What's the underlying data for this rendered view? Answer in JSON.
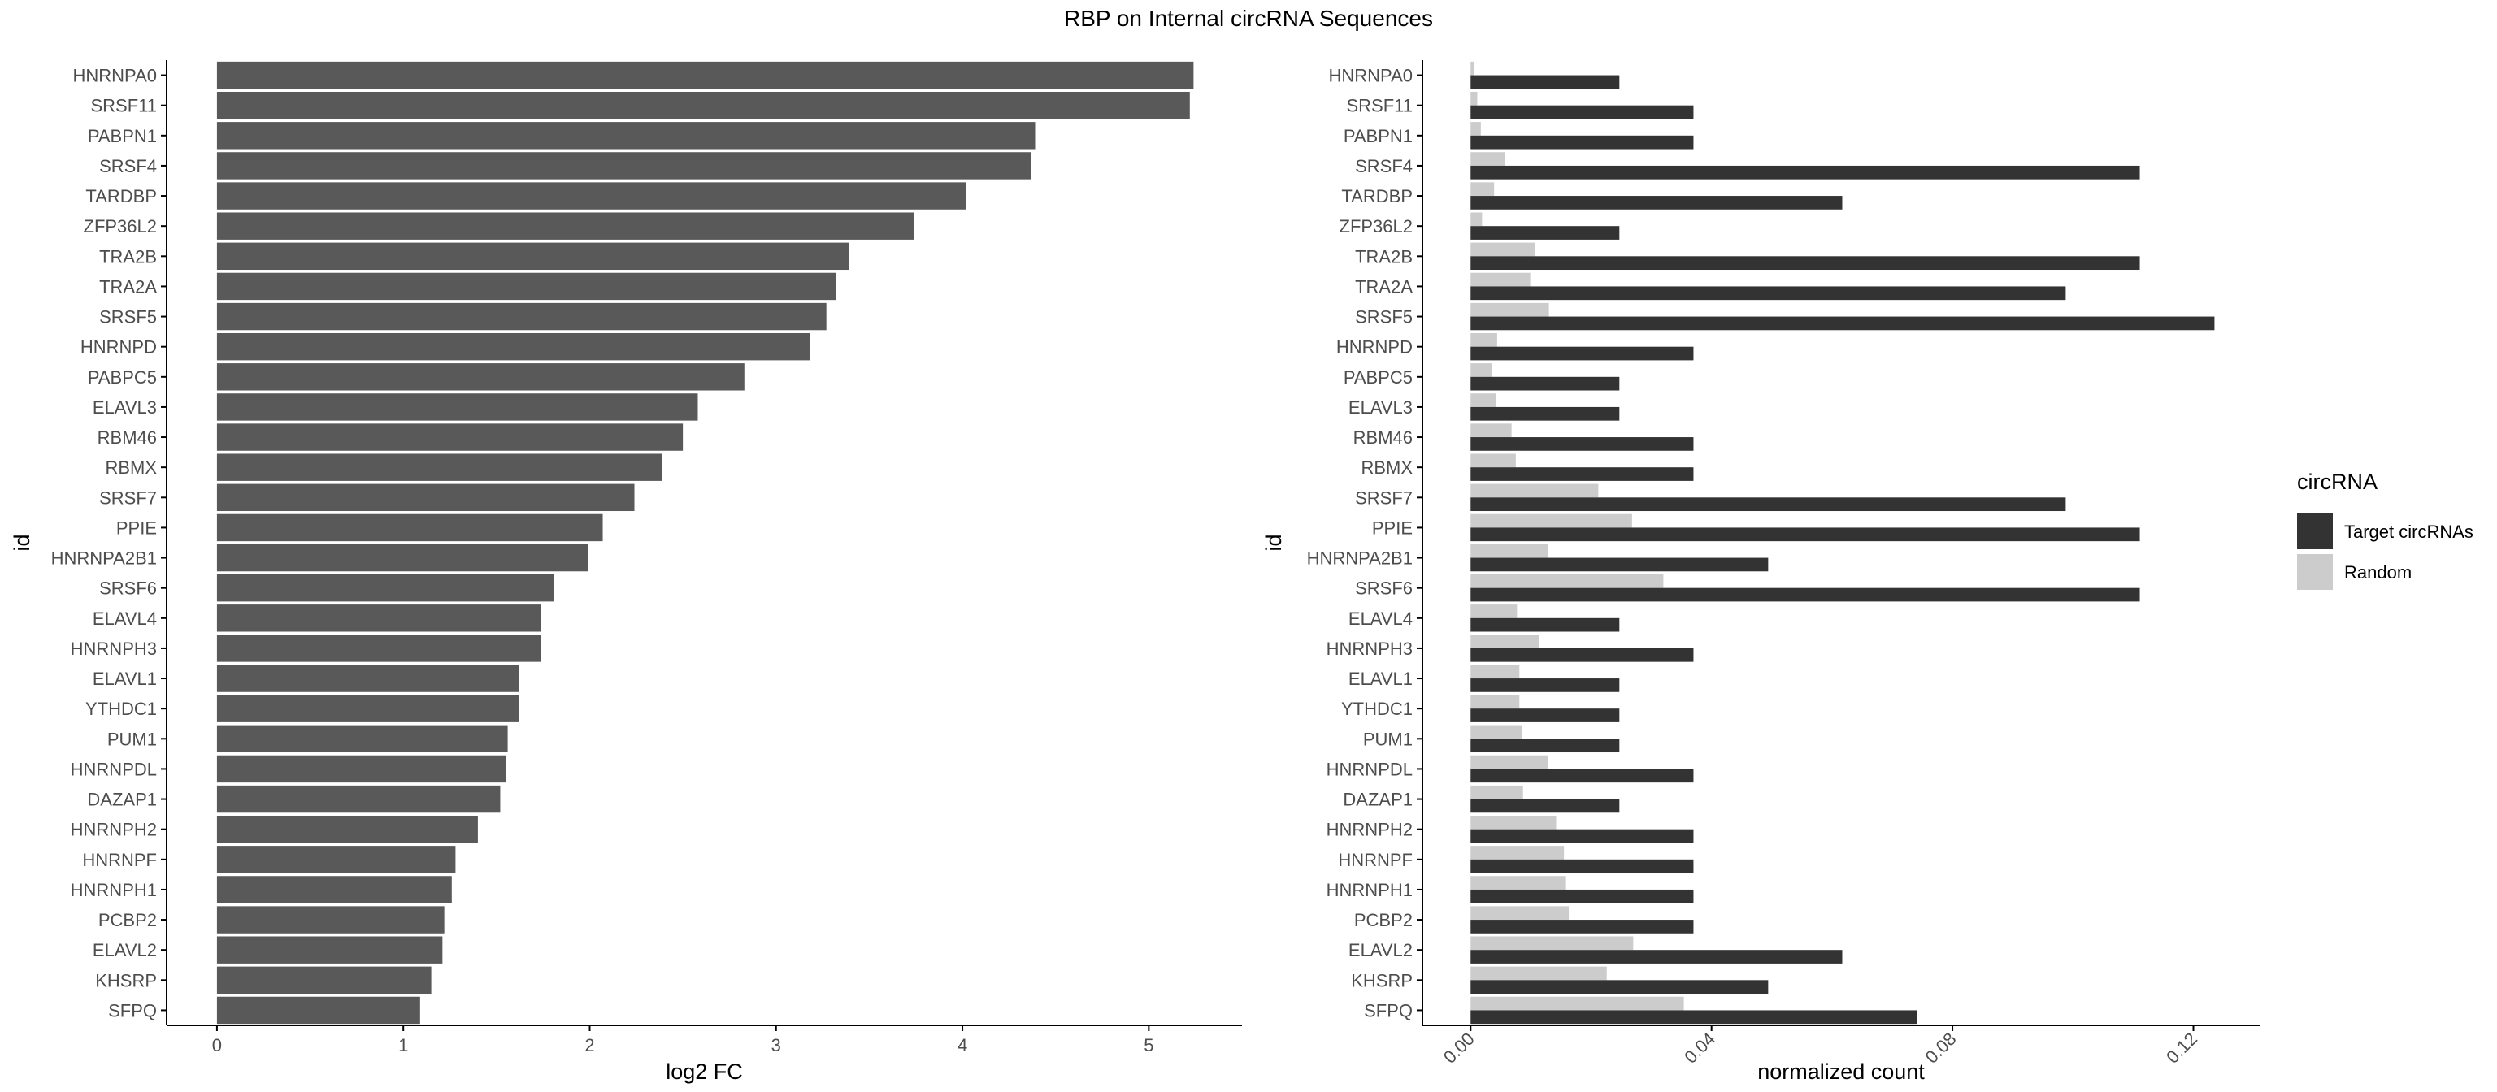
{
  "page_title": "RBP on Internal circRNA Sequences",
  "chart_data": [
    {
      "type": "bar",
      "orientation": "horizontal",
      "title": "",
      "xlabel": "log2 FC",
      "ylabel": "id",
      "xlim": [
        -0.27,
        5.5
      ],
      "x_ticks": [
        0,
        1,
        2,
        3,
        4,
        5
      ],
      "x_tick_labels": [
        "0",
        "1",
        "2",
        "3",
        "4",
        "5"
      ],
      "grid": false,
      "bar_color": "#595959",
      "categories": [
        "HNRNPA0",
        "SRSF11",
        "PABPN1",
        "SRSF4",
        "TARDBP",
        "ZFP36L2",
        "TRA2B",
        "TRA2A",
        "SRSF5",
        "HNRNPD",
        "PABPC5",
        "ELAVL3",
        "RBM46",
        "RBMX",
        "SRSF7",
        "PPIE",
        "HNRNPA2B1",
        "SRSF6",
        "ELAVL4",
        "HNRNPH3",
        "ELAVL1",
        "YTHDC1",
        "PUM1",
        "HNRNPDL",
        "DAZAP1",
        "HNRNPH2",
        "HNRNPF",
        "HNRNPH1",
        "PCBP2",
        "ELAVL2",
        "KHSRP",
        "SFPQ"
      ],
      "values": [
        5.24,
        5.22,
        4.39,
        4.37,
        4.02,
        3.74,
        3.39,
        3.32,
        3.27,
        3.18,
        2.83,
        2.58,
        2.5,
        2.39,
        2.24,
        2.07,
        1.99,
        1.81,
        1.74,
        1.74,
        1.62,
        1.62,
        1.56,
        1.55,
        1.52,
        1.4,
        1.28,
        1.26,
        1.22,
        1.21,
        1.15,
        1.09
      ]
    },
    {
      "type": "bar",
      "orientation": "horizontal",
      "grouped": true,
      "title": "",
      "xlabel": "normalized count",
      "ylabel": "id",
      "xlim": [
        -0.008,
        0.131
      ],
      "x_ticks": [
        0.0,
        0.04,
        0.08,
        0.12
      ],
      "x_tick_labels": [
        "0.00",
        "0.04",
        "0.08",
        "0.12"
      ],
      "grid": false,
      "legend": {
        "title": "circRNA",
        "position": "right"
      },
      "categories": [
        "HNRNPA0",
        "SRSF11",
        "PABPN1",
        "SRSF4",
        "TARDBP",
        "ZFP36L2",
        "TRA2B",
        "TRA2A",
        "SRSF5",
        "HNRNPD",
        "PABPC5",
        "ELAVL3",
        "RBM46",
        "RBMX",
        "SRSF7",
        "PPIE",
        "HNRNPA2B1",
        "SRSF6",
        "ELAVL4",
        "HNRNPH3",
        "ELAVL1",
        "YTHDC1",
        "PUM1",
        "HNRNPDL",
        "DAZAP1",
        "HNRNPH2",
        "HNRNPF",
        "HNRNPH1",
        "PCBP2",
        "ELAVL2",
        "KHSRP",
        "SFPQ"
      ],
      "series": [
        {
          "name": "Target circRNAs",
          "color": "#333333",
          "values": [
            0.0247,
            0.037,
            0.037,
            0.1111,
            0.0617,
            0.0247,
            0.1111,
            0.0988,
            0.1235,
            0.037,
            0.0247,
            0.0247,
            0.037,
            0.037,
            0.0988,
            0.1111,
            0.0494,
            0.1111,
            0.0247,
            0.037,
            0.0247,
            0.0247,
            0.0247,
            0.037,
            0.0247,
            0.037,
            0.037,
            0.037,
            0.037,
            0.0617,
            0.0494,
            0.0741
          ]
        },
        {
          "name": "Random",
          "color": "#cccccc",
          "values": [
            0.0006,
            0.0011,
            0.0017,
            0.0057,
            0.0039,
            0.0019,
            0.0107,
            0.0099,
            0.013,
            0.0044,
            0.0035,
            0.0042,
            0.0068,
            0.0075,
            0.0212,
            0.0268,
            0.0128,
            0.032,
            0.0077,
            0.0113,
            0.0081,
            0.0081,
            0.0085,
            0.0129,
            0.0087,
            0.0142,
            0.0155,
            0.0157,
            0.0163,
            0.027,
            0.0226,
            0.0354
          ]
        }
      ]
    }
  ]
}
